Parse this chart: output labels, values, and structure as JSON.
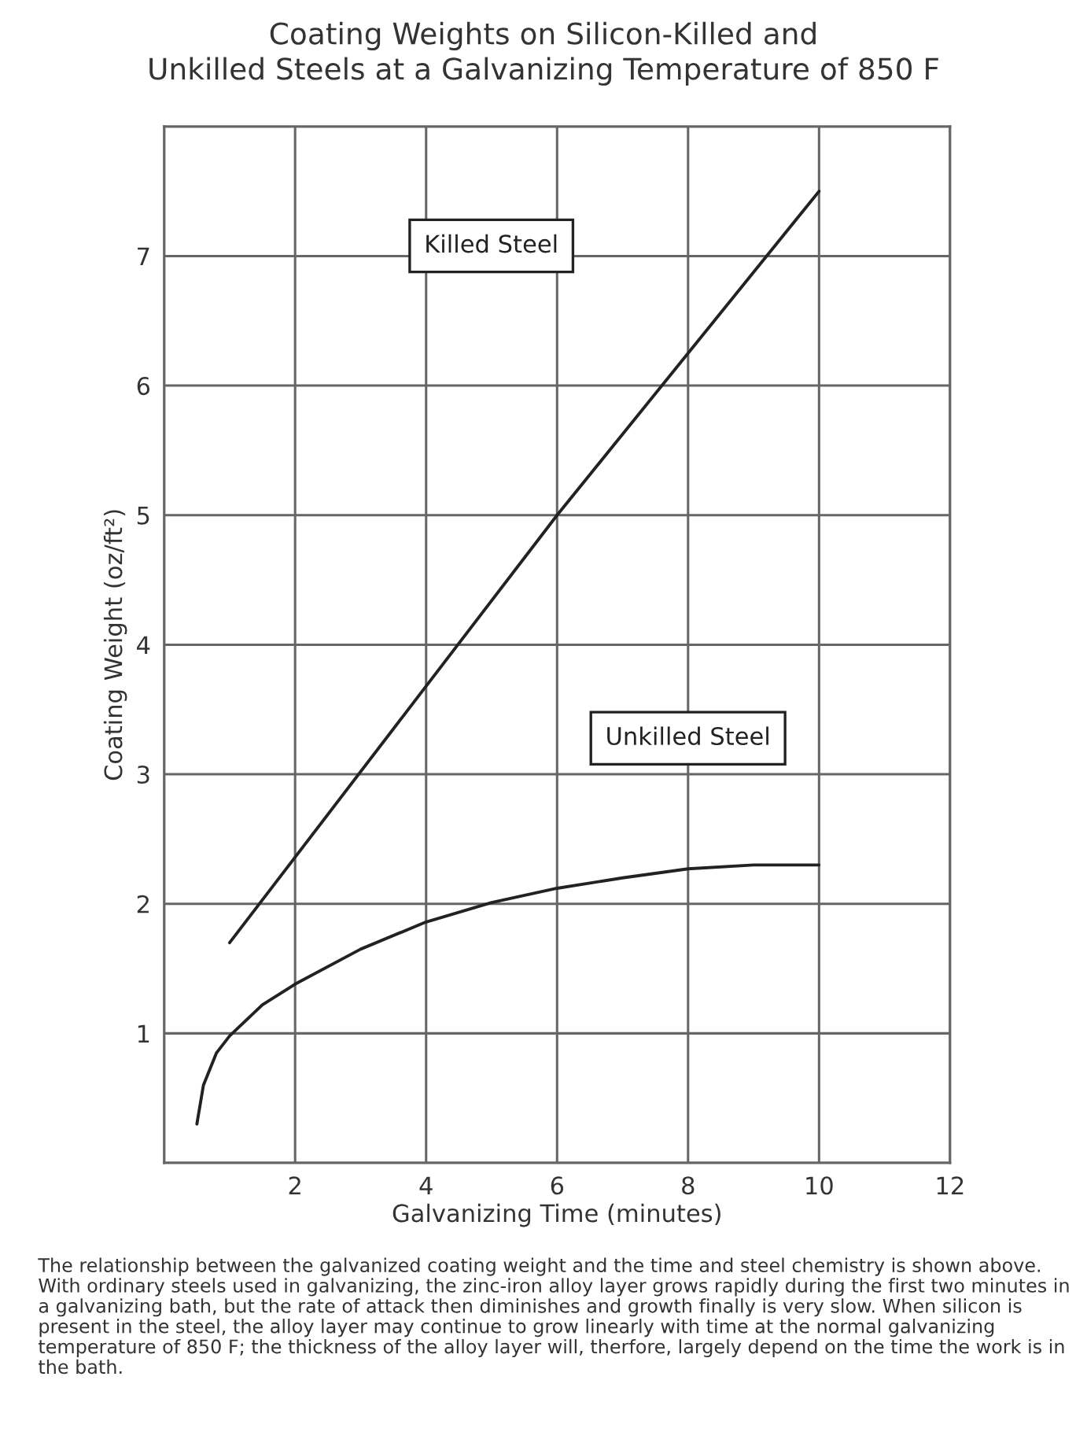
{
  "chart_data": {
    "type": "line",
    "title": "Coating Weights on Silicon-Killed and\nUnkilled Steels at a Galvanizing Temperature of 850 F",
    "xlabel": "Galvanizing Time (minutes)",
    "ylabel": "Coating Weight (oz/ft²)",
    "series": [
      {
        "name": "Killed Steel",
        "color": "#222222",
        "x": [
          1,
          6,
          10
        ],
        "values": [
          1.7,
          5.0,
          7.5
        ]
      },
      {
        "name": "Unkilled Steel",
        "color": "#222222",
        "x": [
          0.5,
          0.6,
          0.8,
          1,
          1.5,
          2,
          3,
          4,
          5,
          6,
          7,
          8,
          9,
          10
        ],
        "values": [
          0.3,
          0.6,
          0.85,
          0.98,
          1.22,
          1.38,
          1.65,
          1.86,
          2.01,
          2.12,
          2.2,
          2.27,
          2.3,
          2.3
        ]
      }
    ],
    "xlim": [
      0,
      12
    ],
    "ylim": [
      0,
      8
    ],
    "xticks": [
      {
        "value": 0,
        "label": null
      },
      2,
      4,
      6,
      8,
      10,
      12
    ],
    "yticks": [
      {
        "value": 0,
        "label": null
      },
      1,
      2,
      3,
      4,
      5,
      6,
      7,
      {
        "value": 8,
        "label": null
      }
    ],
    "grid": true,
    "marker": "none",
    "line_style": "solid",
    "legend": false,
    "annotations": [
      "The relationship between the galvanized coating weight and the time and steel chemistry is shown above. With ordinary steels used in galvanizing, the zinc-iron alloy layer grows rapidly during the first two minutes in a galvanizing bath, but the rate of attack then diminishes and growth finally is very slow. When silicon is present in the steel, the alloy layer may continue to grow linearly with time at the normal galvanizing temperature of 850 F; the thickness of the alloy layer will, therfore, largely depend on the time the work is in the bath."
    ]
  }
}
